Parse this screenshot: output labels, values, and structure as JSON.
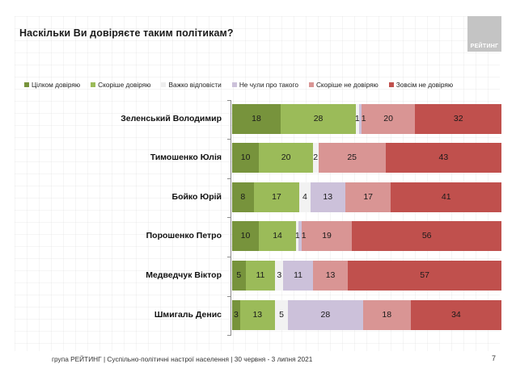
{
  "header": {
    "title": "Наскільки Ви довіряєте таким політикам?",
    "logo_text": "РЕЙТИНГ"
  },
  "footer": {
    "source": "група РЕЙТИНГ | Суспільно-політичні настрої населення  | 30 червня - 3 липня 2021",
    "page_number": "7"
  },
  "chart_data": {
    "type": "bar",
    "orientation": "horizontal",
    "stacked": true,
    "title": "Наскільки Ви довіряєте таким політикам?",
    "xlabel": "",
    "ylabel": "",
    "unit": "%",
    "legend_position": "top",
    "categories": [
      "Зеленський Володимир",
      "Тимошенко Юлія",
      "Бойко Юрій",
      "Порошенко Петро",
      "Медведчук Віктор",
      "Шмигаль Денис"
    ],
    "series": [
      {
        "name": "Цілком довіряю",
        "color": "#77933c",
        "values": [
          18,
          10,
          8,
          10,
          5,
          3
        ]
      },
      {
        "name": "Скоріше довіряю",
        "color": "#9bbb59",
        "values": [
          28,
          20,
          17,
          14,
          11,
          13
        ]
      },
      {
        "name": "Важко відповісти",
        "color": "#f2f2f2",
        "values": [
          1,
          2,
          4,
          1,
          3,
          5
        ]
      },
      {
        "name": "Не чули про такого",
        "color": "#ccc1da",
        "values": [
          1,
          0,
          13,
          1,
          11,
          28
        ]
      },
      {
        "name": "Скоріше не довіряю",
        "color": "#d99594",
        "values": [
          20,
          25,
          17,
          19,
          13,
          18
        ]
      },
      {
        "name": "Зовсім не довіряю",
        "color": "#c0504d",
        "values": [
          32,
          43,
          41,
          56,
          57,
          34
        ]
      }
    ]
  }
}
